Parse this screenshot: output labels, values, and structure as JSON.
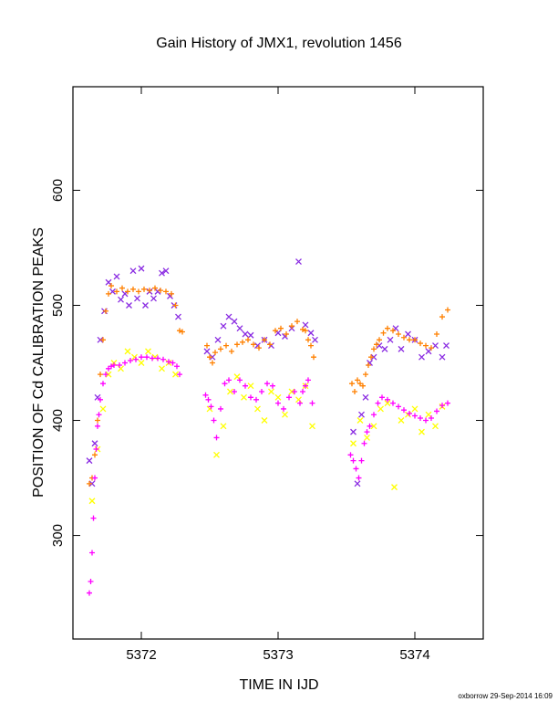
{
  "chart_data": {
    "type": "scatter",
    "title": "Gain History of JMX1, revolution 1456",
    "xlabel": "TIME IN IJD",
    "ylabel": "POSITION OF Cd CALIBRATION PEAKS",
    "xlim": [
      5371.5,
      5374.5
    ],
    "ylim": [
      210,
      690
    ],
    "xticks": [
      5372,
      5373,
      5374
    ],
    "yticks": [
      300,
      400,
      500,
      600
    ],
    "grid": false,
    "legend": "none",
    "series": [
      {
        "marker": "x",
        "color": "#8a2be2",
        "x": [
          5371.62,
          5371.64,
          5371.66,
          5371.68,
          5371.7,
          5371.73,
          5371.76,
          5371.79,
          5371.82,
          5371.85,
          5371.88,
          5371.91,
          5371.94,
          5371.97,
          5372.0,
          5372.03,
          5372.06,
          5372.09,
          5372.12,
          5372.15,
          5372.18,
          5372.21,
          5372.24,
          5372.27,
          5372.48,
          5372.52,
          5372.56,
          5372.6,
          5372.64,
          5372.68,
          5372.72,
          5372.76,
          5372.8,
          5372.85,
          5372.9,
          5372.95,
          5373.0,
          5373.05,
          5373.1,
          5373.15,
          5373.2,
          5373.24,
          5373.27,
          5373.55,
          5373.58,
          5373.61,
          5373.64,
          5373.67,
          5373.7,
          5373.74,
          5373.78,
          5373.82,
          5373.86,
          5373.9,
          5373.95,
          5374.0,
          5374.05,
          5374.1,
          5374.15,
          5374.2,
          5374.23
        ],
        "y": [
          365,
          345,
          380,
          420,
          470,
          495,
          520,
          512,
          525,
          505,
          510,
          500,
          530,
          506,
          532,
          500,
          512,
          506,
          512,
          528,
          530,
          508,
          500,
          490,
          460,
          455,
          470,
          482,
          490,
          486,
          480,
          475,
          474,
          465,
          470,
          465,
          476,
          473,
          480,
          538,
          483,
          476,
          470,
          390,
          345,
          405,
          420,
          450,
          455,
          465,
          462,
          470,
          480,
          462,
          475,
          470,
          455,
          460,
          465,
          455,
          465
        ]
      },
      {
        "marker": "+",
        "color": "#ff8000",
        "x": [
          5371.62,
          5371.64,
          5371.66,
          5371.68,
          5371.7,
          5371.72,
          5371.74,
          5371.76,
          5371.78,
          5371.82,
          5371.86,
          5371.9,
          5371.94,
          5371.98,
          5372.02,
          5372.06,
          5372.1,
          5372.14,
          5372.18,
          5372.22,
          5372.25,
          5372.28,
          5372.3,
          5372.48,
          5372.5,
          5372.52,
          5372.54,
          5372.58,
          5372.62,
          5372.66,
          5372.7,
          5372.74,
          5372.78,
          5372.82,
          5372.86,
          5372.9,
          5372.94,
          5372.98,
          5373.02,
          5373.06,
          5373.1,
          5373.14,
          5373.18,
          5373.2,
          5373.22,
          5373.24,
          5373.26,
          5373.54,
          5373.56,
          5373.58,
          5373.6,
          5373.62,
          5373.64,
          5373.66,
          5373.68,
          5373.7,
          5373.72,
          5373.74,
          5373.77,
          5373.8,
          5373.84,
          5373.88,
          5373.92,
          5373.96,
          5374.0,
          5374.04,
          5374.08,
          5374.12,
          5374.16,
          5374.2,
          5374.24
        ],
        "y": [
          345,
          350,
          370,
          400,
          440,
          470,
          495,
          510,
          517,
          512,
          515,
          512,
          514,
          512,
          514,
          513,
          515,
          513,
          512,
          510,
          500,
          478,
          477,
          465,
          455,
          450,
          459,
          462,
          465,
          460,
          466,
          468,
          470,
          466,
          463,
          470,
          466,
          478,
          480,
          475,
          482,
          486,
          479,
          478,
          470,
          465,
          455,
          432,
          425,
          435,
          432,
          430,
          440,
          448,
          455,
          462,
          466,
          470,
          476,
          480,
          478,
          475,
          472,
          470,
          470,
          467,
          465,
          463,
          475,
          490,
          496
        ]
      },
      {
        "marker": "x",
        "color": "#ffff00",
        "x": [
          5371.64,
          5371.68,
          5371.72,
          5371.76,
          5371.8,
          5371.85,
          5371.9,
          5371.95,
          5372.0,
          5372.05,
          5372.1,
          5372.15,
          5372.2,
          5372.25,
          5372.5,
          5372.55,
          5372.6,
          5372.65,
          5372.7,
          5372.75,
          5372.8,
          5372.85,
          5372.9,
          5372.95,
          5373.0,
          5373.05,
          5373.1,
          5373.15,
          5373.2,
          5373.25,
          5373.55,
          5373.6,
          5373.65,
          5373.7,
          5373.75,
          5373.8,
          5373.85,
          5373.9,
          5373.95,
          5374.0,
          5374.05,
          5374.1,
          5374.15,
          5374.2
        ],
        "y": [
          330,
          375,
          410,
          440,
          450,
          445,
          460,
          455,
          450,
          460,
          455,
          445,
          450,
          440,
          410,
          370,
          395,
          425,
          438,
          420,
          430,
          410,
          400,
          425,
          420,
          405,
          425,
          418,
          430,
          395,
          380,
          400,
          385,
          395,
          410,
          415,
          342,
          400,
          405,
          410,
          390,
          405,
          395,
          412
        ]
      },
      {
        "marker": "+",
        "color": "#ff00ff",
        "x": [
          5371.62,
          5371.63,
          5371.64,
          5371.65,
          5371.66,
          5371.67,
          5371.68,
          5371.69,
          5371.7,
          5371.72,
          5371.74,
          5371.76,
          5371.78,
          5371.8,
          5371.84,
          5371.88,
          5371.92,
          5371.96,
          5372.0,
          5372.04,
          5372.08,
          5372.12,
          5372.16,
          5372.2,
          5372.23,
          5372.26,
          5372.28,
          5372.47,
          5372.49,
          5372.51,
          5372.53,
          5372.55,
          5372.58,
          5372.61,
          5372.64,
          5372.68,
          5372.72,
          5372.76,
          5372.8,
          5372.84,
          5372.88,
          5372.92,
          5372.96,
          5373.0,
          5373.04,
          5373.08,
          5373.12,
          5373.16,
          5373.18,
          5373.2,
          5373.22,
          5373.25,
          5373.53,
          5373.55,
          5373.57,
          5373.59,
          5373.61,
          5373.63,
          5373.65,
          5373.67,
          5373.7,
          5373.73,
          5373.76,
          5373.8,
          5373.84,
          5373.88,
          5373.92,
          5373.96,
          5374.0,
          5374.04,
          5374.08,
          5374.12,
          5374.16,
          5374.2,
          5374.24
        ],
        "y": [
          250,
          260,
          285,
          315,
          350,
          375,
          395,
          405,
          418,
          432,
          440,
          445,
          447,
          448,
          448,
          450,
          452,
          453,
          455,
          455,
          454,
          454,
          453,
          451,
          450,
          447,
          440,
          422,
          418,
          412,
          400,
          385,
          410,
          432,
          435,
          425,
          435,
          430,
          420,
          418,
          425,
          432,
          430,
          415,
          410,
          420,
          425,
          415,
          425,
          430,
          435,
          415,
          370,
          365,
          358,
          350,
          365,
          380,
          390,
          395,
          405,
          415,
          420,
          418,
          415,
          412,
          409,
          406,
          404,
          402,
          400,
          402,
          408,
          413,
          415
        ]
      }
    ]
  },
  "footer_credit": "oxborrow 29-Sep-2014 16:09"
}
